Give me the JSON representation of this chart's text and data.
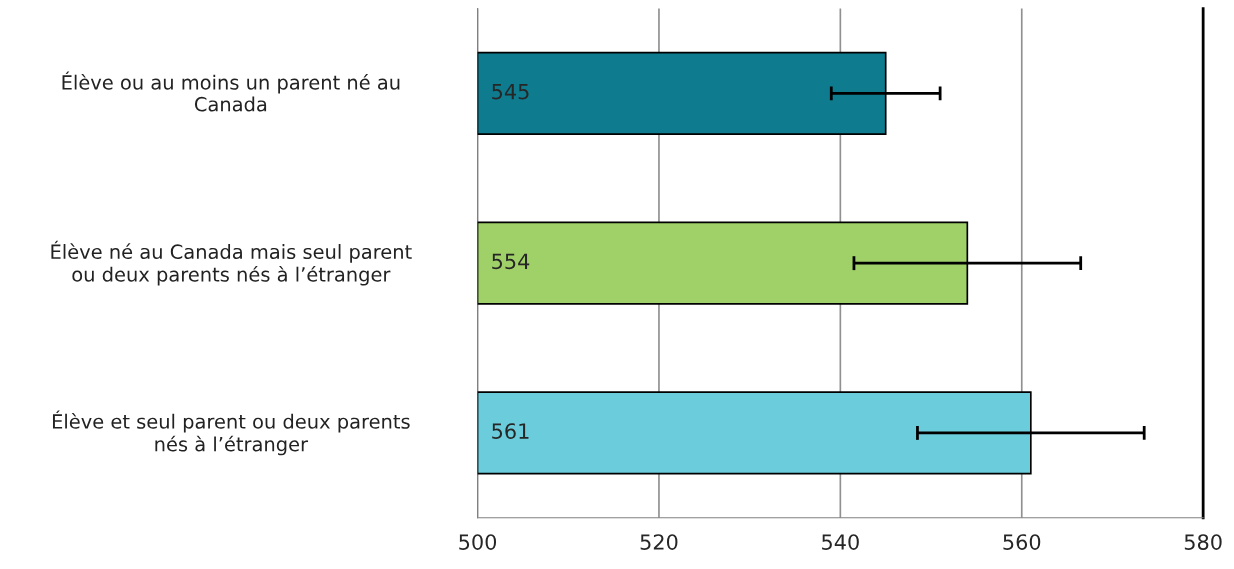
{
  "chart_data": {
    "type": "bar",
    "orientation": "horizontal",
    "categories": [
      "Élève ou au moins un parent né au Canada",
      "Élève né au Canada mais seul parent ou deux parents nés à l’étranger",
      "Élève et seul parent ou deux parents nés à l’étranger"
    ],
    "values": [
      545,
      554,
      561
    ],
    "errors": [
      6,
      12.5,
      12.5
    ],
    "colors": [
      "#0f7b8f",
      "#a0d168",
      "#6bcddb"
    ],
    "xlim": [
      500,
      580
    ],
    "xticks": [
      500,
      520,
      540,
      560,
      580
    ],
    "grid": "x",
    "data_labels": true,
    "legend": false
  }
}
